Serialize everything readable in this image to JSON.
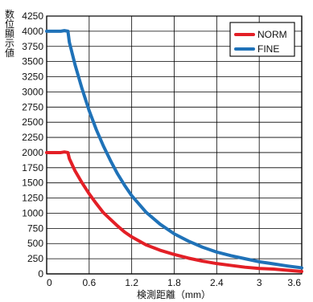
{
  "chart_data": {
    "type": "line",
    "title": "",
    "xlabel": "検測距離（mm）",
    "ylabel": "数位顯示値",
    "xlim": [
      0,
      3.6
    ],
    "ylim": [
      0,
      4250
    ],
    "x_ticks": [
      "0",
      "0.6",
      "1.2",
      "1.8",
      "2.4",
      "3",
      "3.6"
    ],
    "x_tick_values": [
      0,
      0.6,
      1.2,
      1.8,
      2.4,
      3.0,
      3.6
    ],
    "y_ticks": [
      "0",
      "250",
      "500",
      "750",
      "1000",
      "1250",
      "1500",
      "1750",
      "2000",
      "2250",
      "2500",
      "2750",
      "3000",
      "3250",
      "3500",
      "3750",
      "4000",
      "4250"
    ],
    "y_tick_values": [
      0,
      250,
      500,
      750,
      1000,
      1250,
      1500,
      1750,
      2000,
      2250,
      2500,
      2750,
      3000,
      3250,
      3500,
      3750,
      4000,
      4250
    ],
    "grid": true,
    "legend_position": "top-right",
    "series": [
      {
        "name": "NORM",
        "color": "#e31f26",
        "points": [
          [
            0.0,
            2000
          ],
          [
            0.1,
            2000
          ],
          [
            0.2,
            2000
          ],
          [
            0.25,
            2010
          ],
          [
            0.3,
            2000
          ],
          [
            0.32,
            1900
          ],
          [
            0.4,
            1700
          ],
          [
            0.5,
            1500
          ],
          [
            0.6,
            1320
          ],
          [
            0.7,
            1160
          ],
          [
            0.8,
            1010
          ],
          [
            0.9,
            900
          ],
          [
            1.0,
            790
          ],
          [
            1.1,
            690
          ],
          [
            1.2,
            610
          ],
          [
            1.4,
            480
          ],
          [
            1.6,
            390
          ],
          [
            1.8,
            320
          ],
          [
            2.0,
            260
          ],
          [
            2.2,
            210
          ],
          [
            2.4,
            170
          ],
          [
            2.6,
            140
          ],
          [
            2.8,
            110
          ],
          [
            3.0,
            90
          ],
          [
            3.2,
            80
          ],
          [
            3.4,
            60
          ],
          [
            3.6,
            40
          ]
        ]
      },
      {
        "name": "FINE",
        "color": "#1f72b8",
        "points": [
          [
            0.0,
            4000
          ],
          [
            0.1,
            4000
          ],
          [
            0.2,
            4000
          ],
          [
            0.25,
            4010
          ],
          [
            0.3,
            4000
          ],
          [
            0.32,
            3820
          ],
          [
            0.4,
            3450
          ],
          [
            0.5,
            3050
          ],
          [
            0.6,
            2690
          ],
          [
            0.7,
            2380
          ],
          [
            0.8,
            2110
          ],
          [
            0.9,
            1870
          ],
          [
            1.0,
            1650
          ],
          [
            1.1,
            1460
          ],
          [
            1.2,
            1290
          ],
          [
            1.4,
            1020
          ],
          [
            1.6,
            820
          ],
          [
            1.8,
            660
          ],
          [
            2.0,
            540
          ],
          [
            2.2,
            440
          ],
          [
            2.4,
            360
          ],
          [
            2.6,
            300
          ],
          [
            2.8,
            250
          ],
          [
            3.0,
            200
          ],
          [
            3.2,
            165
          ],
          [
            3.4,
            130
          ],
          [
            3.6,
            100
          ]
        ]
      }
    ]
  }
}
